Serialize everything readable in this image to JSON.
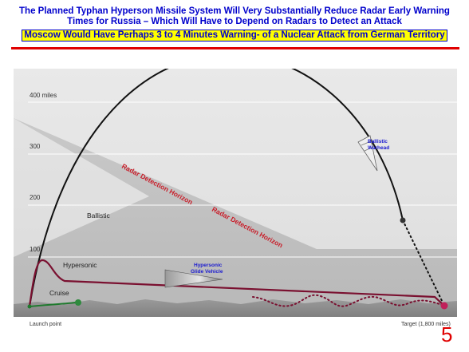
{
  "header": {
    "line1": "The Planned Typhan Hyperson Missile System Will Very Substantially Reduce Radar Early Warning",
    "line2": "Times for Russia – Which Will Have to Depend on Radars to Detect an Attack",
    "highlight": "Moscow Would Have Perhaps 3 to 4 Minutes Warning- of a Nuclear Attack from German Territory"
  },
  "diagram": {
    "axis_labels": [
      "400 miles",
      "300",
      "200",
      "100"
    ],
    "trajectory_labels": {
      "ballistic": "Ballistic",
      "hypersonic": "Hypersonic",
      "cruise": "Cruise"
    },
    "vehicle_labels": {
      "ballistic_warhead_line1": "Ballistic",
      "ballistic_warhead_line2": "Warhead",
      "glide_vehicle_line1": "Hypersonic",
      "glide_vehicle_line2": "Glide Vehicle"
    },
    "radar_horizon_1": "Radar Detection Horizon",
    "radar_horizon_2": "Radar Detection Horizon",
    "launch_point": "Launch point",
    "target": "Target (1,800 miles)"
  },
  "slide_number": "5",
  "colors": {
    "title_text": "#0000cc",
    "highlight_bg": "#ffff00",
    "rule": "#e00000",
    "trajectory": "#7a1030",
    "ballistic_arc": "#111111",
    "cruise_line": "#1f7a2e",
    "target_dot": "#c0205a"
  }
}
